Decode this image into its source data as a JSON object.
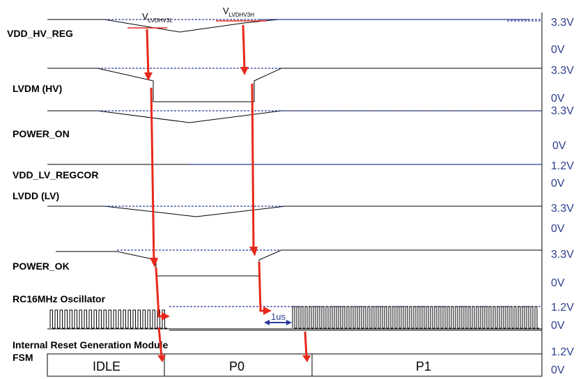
{
  "signals": {
    "vdd_hv_reg": "VDD_HV_REG",
    "lvdm_hv": "LVDM (HV)",
    "power_on": "POWER_ON",
    "vdd_lv_regcor": "VDD_LV_REGCOR",
    "lvdd_lv": "LVDD (LV)",
    "power_ok": "POWER_OK",
    "rc16mhz": "RC16MHz Oscillator",
    "irgm": "Internal Reset Generation Module",
    "fsm": "FSM"
  },
  "thresholds": {
    "low_main": "V",
    "low_sub": "LVDHV3L",
    "high_main": "V",
    "high_sub": "LVDHV3H"
  },
  "voltages": {
    "v1_high": "3.3V",
    "v1_low": "0V",
    "v2_high": "3.3V",
    "v2_low": "0V",
    "v3_high": "3.3V",
    "v3_low": "0V",
    "v4_high": "1.2V",
    "v4_low": "0V",
    "v5_high": "3.3V",
    "v5_low": "0V",
    "v6_high": "3.3V",
    "v6_low": "0V",
    "v7_high": "1.2V",
    "v7_low": "0V",
    "v8_high": "1.2V",
    "v8_low": "0V"
  },
  "fsm_states": [
    "IDLE",
    "P0",
    "P1"
  ],
  "delay_label": "1us",
  "colors": {
    "arrow": "#e8281b",
    "dashed": "#2b3a99",
    "voltage_text": "#2f3f8f"
  }
}
